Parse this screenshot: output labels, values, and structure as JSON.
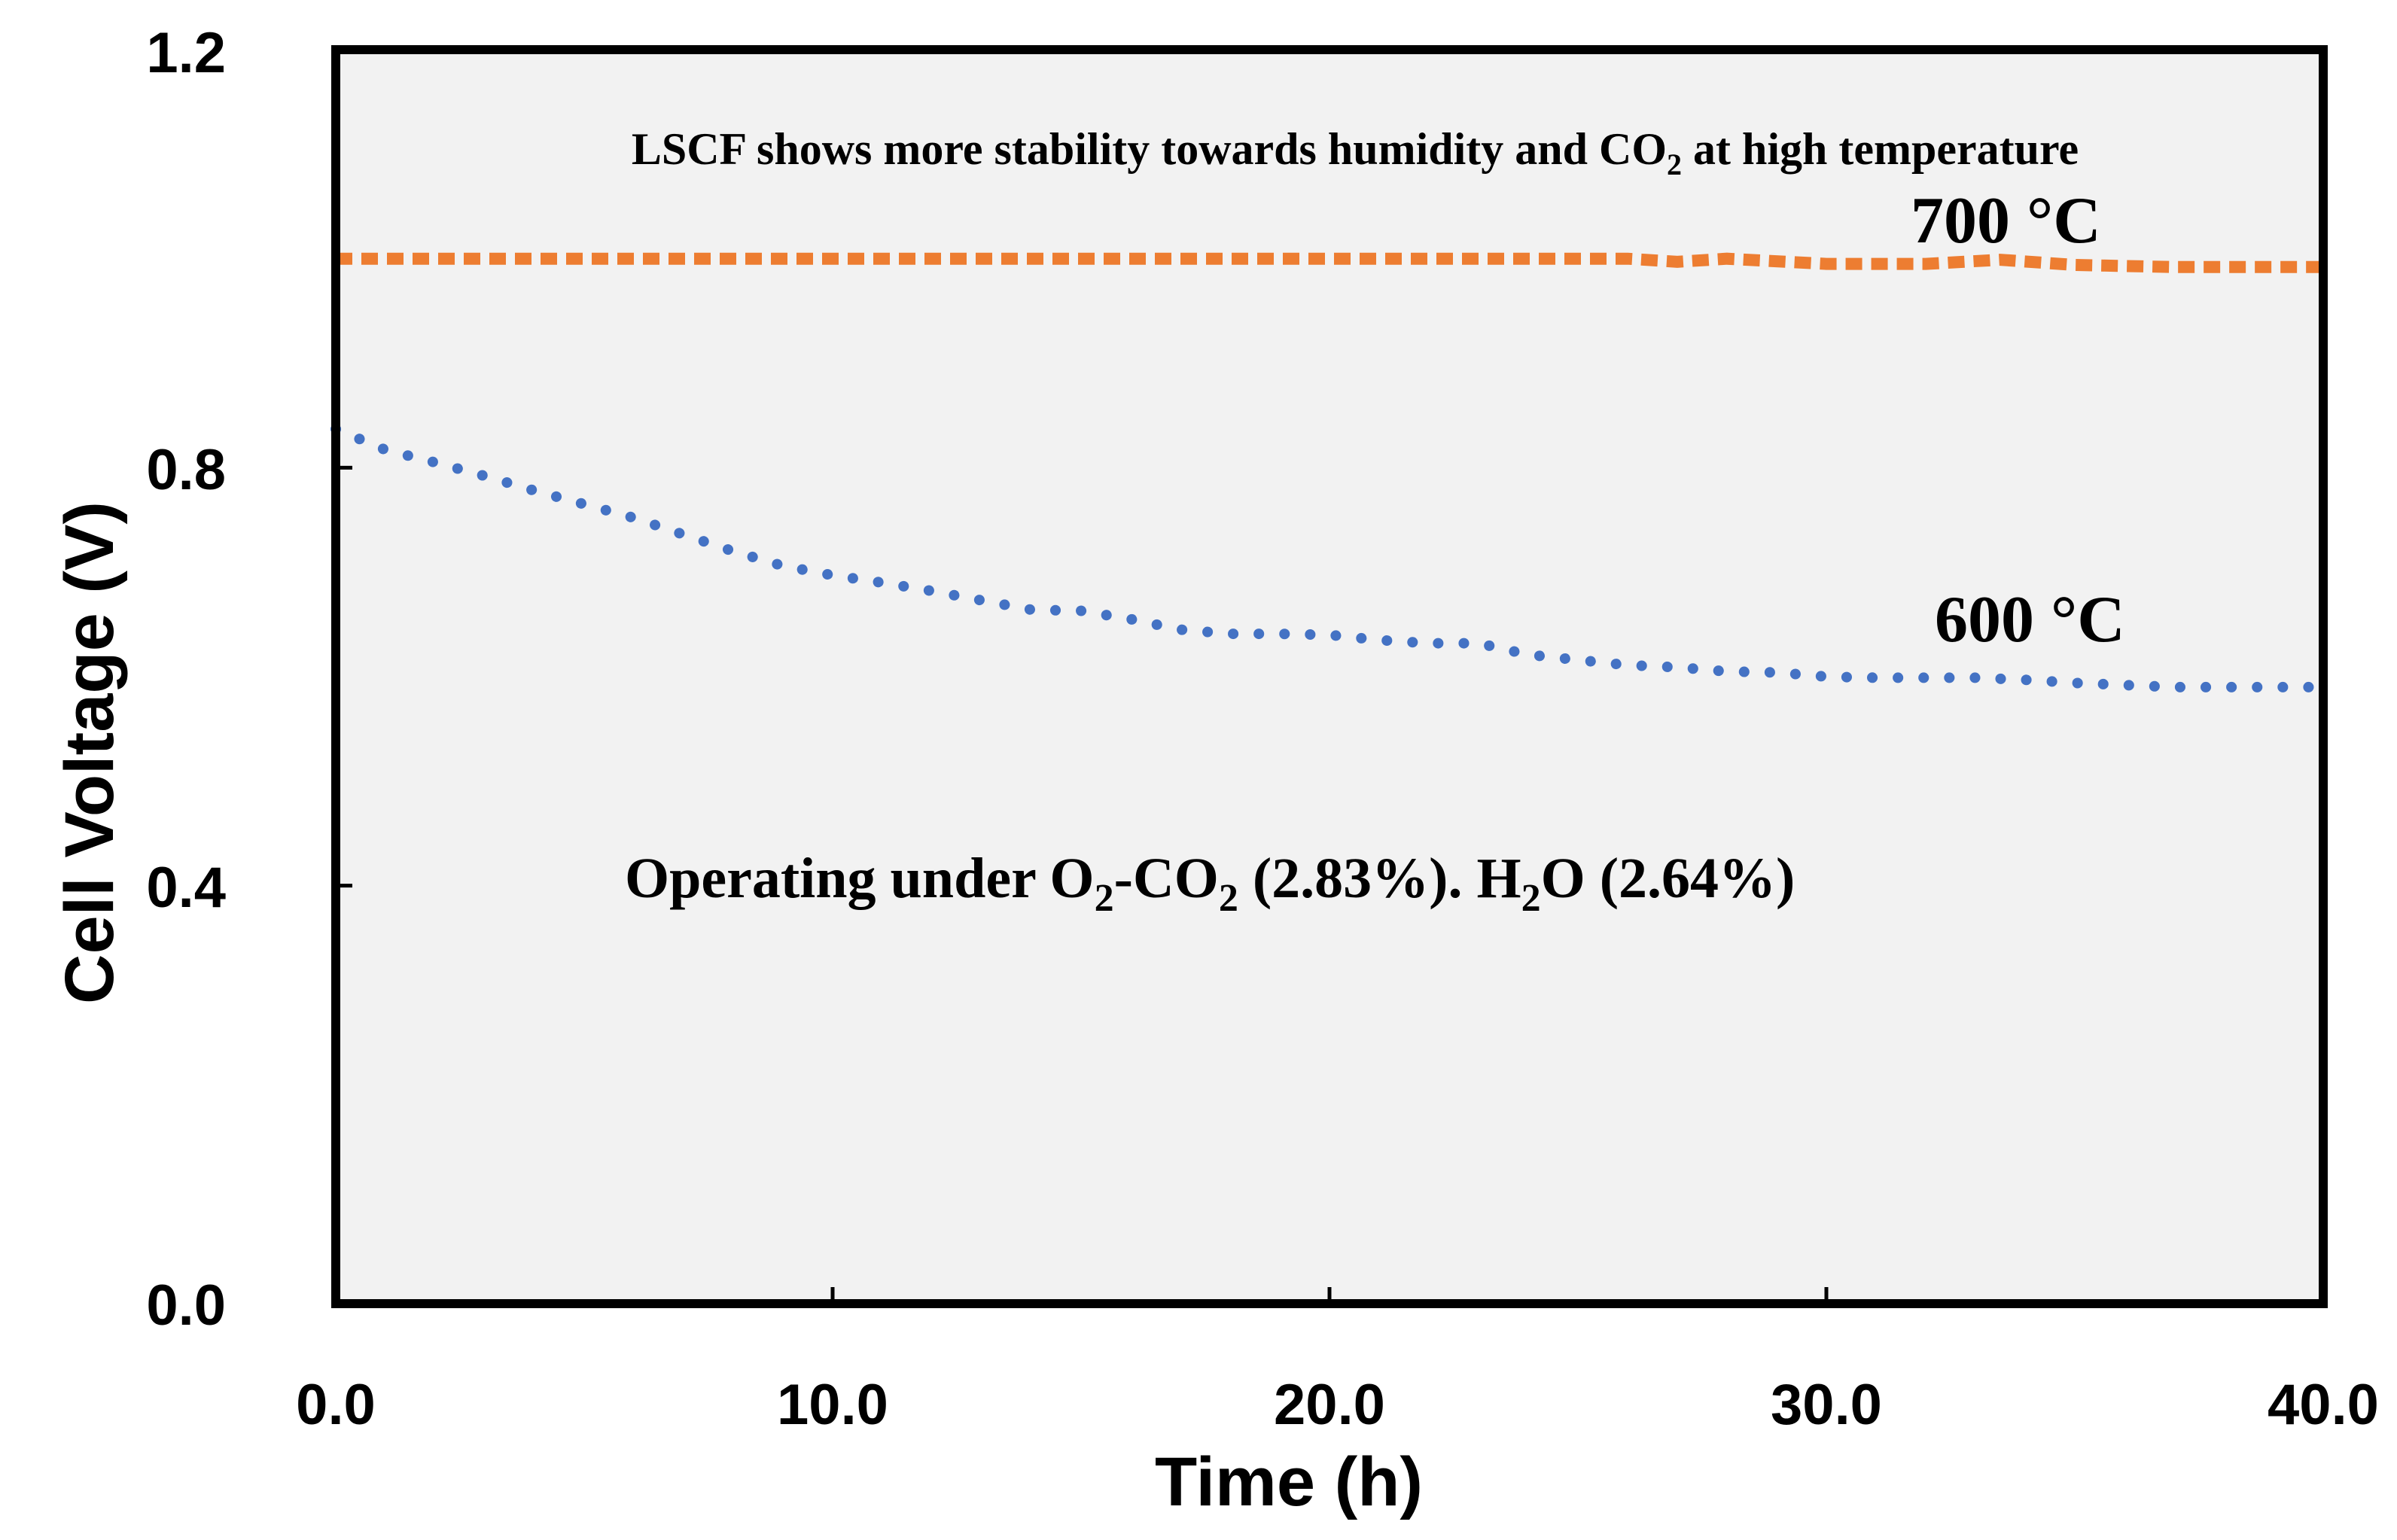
{
  "chart_data": {
    "type": "line",
    "title": "",
    "xlabel": "Time (h)",
    "ylabel": "Cell Voltage  (V)",
    "xlim": [
      0,
      40
    ],
    "ylim": [
      0,
      1.2
    ],
    "x_ticks": [
      "0.0",
      "10.0",
      "20.0",
      "30.0",
      "40.0"
    ],
    "y_ticks": [
      "0.0",
      "0.4",
      "0.8",
      "1.2"
    ],
    "grid": false,
    "background": "#f2f2f2",
    "series": [
      {
        "name": "700 °C",
        "color": "#ed7d31",
        "style": "dashed",
        "x": [
          0,
          2,
          4,
          6,
          8,
          10,
          12,
          14,
          16,
          18,
          20,
          22,
          24,
          26,
          27,
          28,
          30,
          32,
          33.5,
          35,
          37,
          40
        ],
        "y": [
          1.0,
          1.0,
          1.0,
          1.0,
          1.0,
          1.0,
          1.0,
          1.0,
          1.0,
          1.0,
          1.0,
          1.0,
          1.0,
          1.0,
          0.997,
          1.0,
          0.995,
          0.995,
          0.999,
          0.994,
          0.992,
          0.992
        ]
      },
      {
        "name": "600 °C",
        "color": "#4472c4",
        "style": "dotted",
        "x": [
          0,
          1,
          2,
          3,
          4,
          5,
          6,
          7,
          8,
          9,
          10,
          11,
          12,
          13,
          14,
          15,
          16,
          17,
          18,
          19,
          20,
          21,
          22,
          23,
          24,
          25,
          26,
          27,
          28,
          29,
          30,
          31,
          32,
          33,
          34,
          35,
          36,
          37,
          38,
          39,
          40
        ],
        "y": [
          0.837,
          0.817,
          0.805,
          0.792,
          0.778,
          0.765,
          0.752,
          0.736,
          0.72,
          0.706,
          0.697,
          0.69,
          0.682,
          0.673,
          0.664,
          0.663,
          0.655,
          0.645,
          0.641,
          0.641,
          0.64,
          0.635,
          0.632,
          0.632,
          0.621,
          0.616,
          0.611,
          0.609,
          0.605,
          0.604,
          0.6,
          0.599,
          0.599,
          0.599,
          0.597,
          0.594,
          0.592,
          0.59,
          0.59,
          0.59,
          0.59
        ]
      }
    ],
    "annotations": {
      "top_note_main": "LSCF shows more stability towards humidity and CO",
      "top_note_sub": "2",
      "top_note_end": " at high temperature",
      "label_700": "700 °C",
      "label_600": "600 °C",
      "cond_a": "Operating under O",
      "cond_b": "2",
      "cond_c": "-CO",
      "cond_d": "2",
      "cond_e": " (2.83%). H",
      "cond_f": "2",
      "cond_g": "O (2.64%)"
    }
  }
}
